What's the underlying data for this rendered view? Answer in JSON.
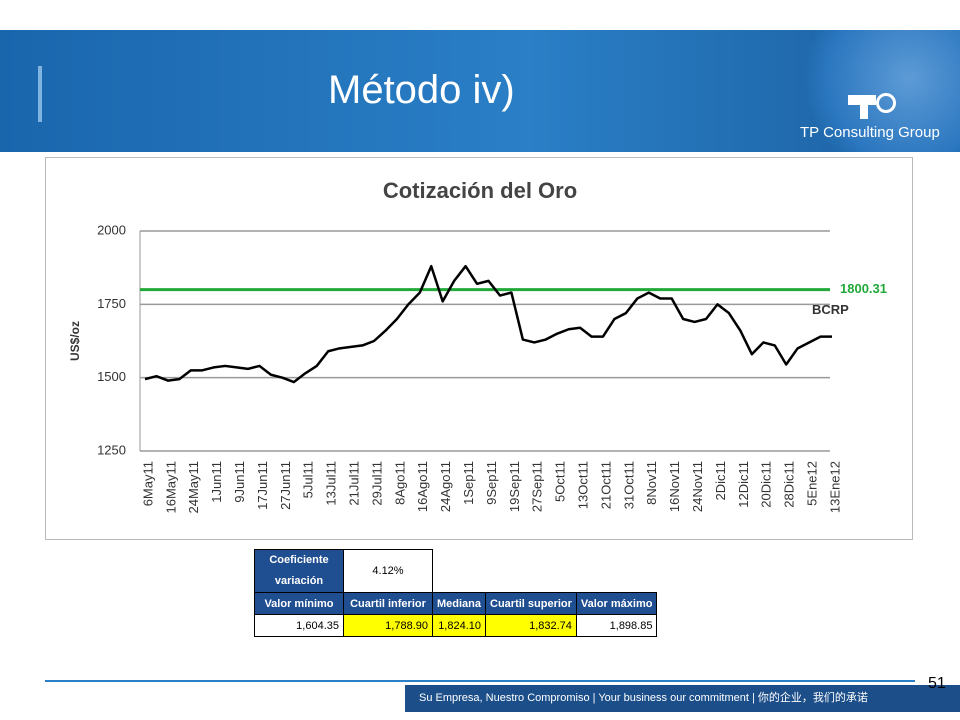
{
  "slide_title": "Método iv)",
  "logo_text": "TP Consulting Group",
  "chart_data": {
    "type": "line",
    "title": "Cotización del Oro",
    "y_label": "US$/oz",
    "categories": [
      "6May11",
      null,
      "16May11",
      null,
      "24May11",
      null,
      "1Jun11",
      null,
      "9Jun11",
      null,
      "17Jun11",
      null,
      "27Jun11",
      null,
      "5Jul11",
      null,
      "13Jul11",
      null,
      "21Jul11",
      null,
      "29Jul11",
      null,
      "8Ago11",
      null,
      "16Ago11",
      null,
      "24Ago11",
      null,
      "1Sep11",
      null,
      "9Sep11",
      null,
      "19Sep11",
      null,
      "27Sep11",
      null,
      "5Oct11",
      null,
      "13Oct11",
      null,
      "21Oct11",
      null,
      "31Oct11",
      null,
      "8Nov11",
      null,
      "16Nov11",
      null,
      "24Nov11",
      null,
      "2Dic11",
      null,
      "12Dic11",
      null,
      "20Dic11",
      null,
      "28Dic11",
      null,
      "5Ene12",
      null,
      "13Ene12"
    ],
    "series": [
      {
        "name": "BCRP",
        "color": "#000000",
        "values": [
          1495,
          1505,
          1490,
          1495,
          1525,
          1525,
          1535,
          1540,
          1535,
          1530,
          1540,
          1510,
          1500,
          1485,
          1515,
          1540,
          1590,
          1600,
          1605,
          1610,
          1625,
          1660,
          1700,
          1750,
          1790,
          1880,
          1760,
          1830,
          1880,
          1820,
          1830,
          1780,
          1790,
          1630,
          1620,
          1630,
          1650,
          1665,
          1670,
          1640,
          1640,
          1700,
          1720,
          1770,
          1790,
          1770,
          1770,
          1700,
          1690,
          1700,
          1750,
          1720,
          1660,
          1580,
          1620,
          1610,
          1545,
          1600,
          1620,
          1640,
          1640
        ]
      }
    ],
    "reference_line": {
      "value": 1800.31,
      "color": "#22a83a"
    },
    "ylim": [
      1250,
      2000
    ],
    "yticks": [
      1250,
      1500,
      1750,
      2000
    ],
    "grid": true
  },
  "stats_table": {
    "cv_label": "Coeficiente variación",
    "cv_value": "4.12%",
    "headers": [
      "Valor mínimo",
      "Cuartil inferior",
      "Mediana",
      "Cuartil superior",
      "Valor máximo"
    ],
    "values": [
      "1,604.35",
      "1,788.90",
      "1,824.10",
      "1,832.74",
      "1,898.85"
    ]
  },
  "footer": "Su Empresa, Nuestro Compromiso | Your business our commitment | 你的企业，我们的承诺",
  "page_number": "51"
}
